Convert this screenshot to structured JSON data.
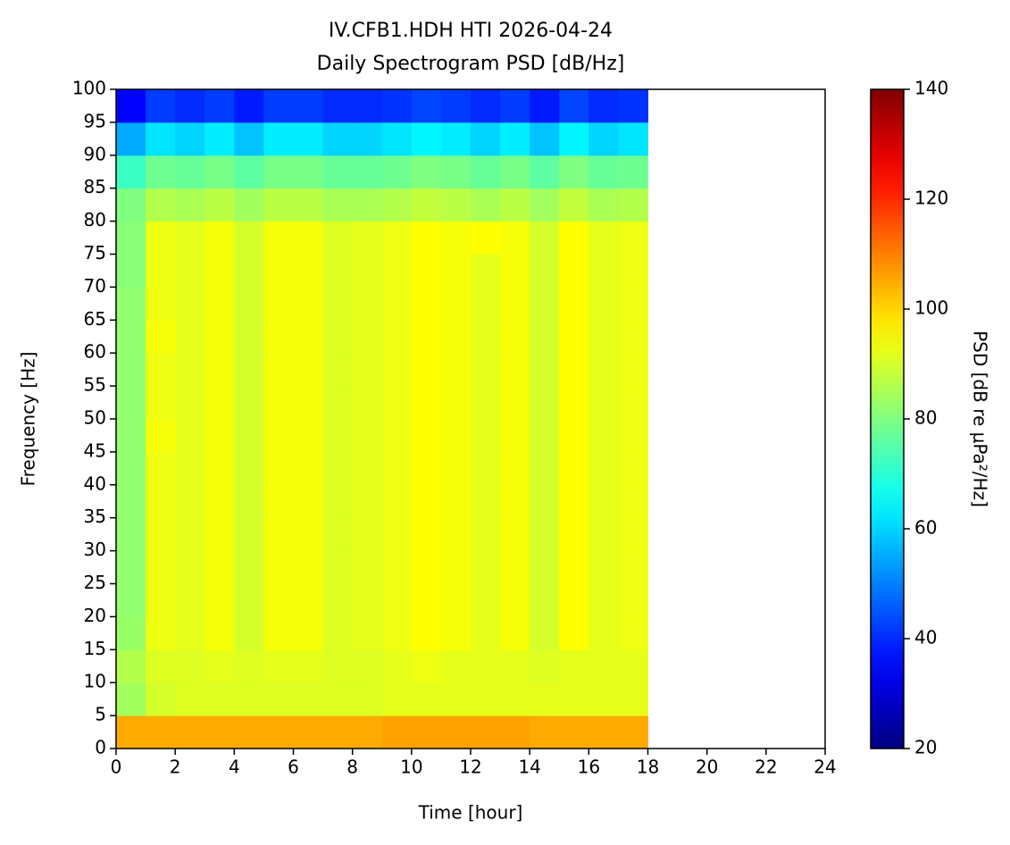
{
  "chart_data": {
    "type": "heatmap",
    "title": "IV.CFB1.HDH HTI 2026-04-24",
    "subtitle": "Daily Spectrogram PSD [dB/Hz]",
    "xlabel": "Time [hour]",
    "ylabel": "Frequency [Hz]",
    "colorbar_label": "PSD [dB re μPa²/Hz]",
    "colormap": "jet",
    "xbins": [
      0,
      1,
      2,
      3,
      4,
      5,
      6,
      7,
      8,
      9,
      10,
      11,
      12,
      13,
      14,
      15,
      16,
      17,
      18
    ],
    "ybins": [
      0,
      5,
      10,
      15,
      20,
      25,
      30,
      35,
      40,
      45,
      50,
      55,
      60,
      65,
      70,
      75,
      80,
      85,
      90,
      95,
      100
    ],
    "values": [
      [
        105,
        105,
        105,
        105,
        105,
        105,
        105,
        105,
        105,
        106,
        106,
        106,
        106,
        106,
        105,
        105,
        105,
        105
      ],
      [
        84,
        90,
        91,
        91,
        91,
        91,
        91,
        91,
        91,
        92,
        92,
        92,
        92,
        92,
        92,
        92,
        92,
        92
      ],
      [
        86,
        91,
        91,
        92,
        91,
        92,
        92,
        91,
        91,
        92,
        93,
        92,
        92,
        92,
        91,
        92,
        92,
        92
      ],
      [
        83,
        93,
        92,
        94,
        90,
        94,
        94,
        91,
        92,
        93,
        95,
        94,
        92,
        94,
        90,
        95,
        92,
        93
      ],
      [
        82,
        93,
        92,
        94,
        90,
        94,
        94,
        91,
        92,
        93,
        95,
        94,
        92,
        94,
        90,
        95,
        92,
        93
      ],
      [
        82,
        93,
        92,
        94,
        90,
        94,
        94,
        91,
        92,
        93,
        95,
        94,
        92,
        94,
        90,
        95,
        92,
        93
      ],
      [
        82,
        93,
        92,
        94,
        90,
        94,
        94,
        91,
        92,
        93,
        95,
        94,
        92,
        94,
        90,
        95,
        92,
        93
      ],
      [
        82,
        93,
        92,
        94,
        90,
        94,
        94,
        91,
        92,
        93,
        95,
        94,
        92,
        94,
        90,
        95,
        92,
        93
      ],
      [
        82,
        93,
        92,
        94,
        90,
        94,
        94,
        91,
        92,
        93,
        95,
        94,
        92,
        94,
        90,
        95,
        92,
        93
      ],
      [
        82,
        94,
        92,
        94,
        90,
        94,
        94,
        91,
        92,
        93,
        95,
        94,
        92,
        94,
        90,
        95,
        92,
        93
      ],
      [
        82,
        93,
        92,
        94,
        90,
        94,
        94,
        91,
        92,
        93,
        95,
        94,
        92,
        94,
        90,
        95,
        92,
        93
      ],
      [
        82,
        93,
        92,
        94,
        90,
        94,
        94,
        91,
        92,
        93,
        95,
        94,
        92,
        94,
        90,
        95,
        92,
        93
      ],
      [
        82,
        94,
        92,
        94,
        90,
        94,
        94,
        91,
        92,
        93,
        95,
        94,
        92,
        94,
        90,
        95,
        92,
        93
      ],
      [
        82,
        93,
        92,
        94,
        90,
        94,
        94,
        91,
        92,
        93,
        95,
        94,
        92,
        94,
        90,
        95,
        92,
        93
      ],
      [
        81,
        93,
        92,
        94,
        90,
        94,
        94,
        91,
        92,
        93,
        95,
        94,
        92,
        94,
        90,
        95,
        92,
        93
      ],
      [
        81,
        93,
        92,
        94,
        90,
        94,
        94,
        91,
        92,
        93,
        95,
        94,
        95,
        94,
        90,
        95,
        92,
        93
      ],
      [
        80,
        86,
        85,
        87,
        84,
        87,
        87,
        85,
        85,
        86,
        88,
        87,
        85,
        87,
        84,
        88,
        85,
        86
      ],
      [
        72,
        78,
        77,
        79,
        76,
        79,
        79,
        77,
        77,
        78,
        80,
        79,
        77,
        79,
        76,
        80,
        77,
        78
      ],
      [
        55,
        62,
        60,
        63,
        58,
        63,
        63,
        60,
        60,
        62,
        64,
        63,
        60,
        63,
        58,
        64,
        60,
        62
      ],
      [
        35,
        42,
        40,
        42,
        38,
        42,
        42,
        40,
        40,
        41,
        43,
        42,
        40,
        42,
        38,
        43,
        40,
        41
      ]
    ],
    "xlim": [
      0,
      24
    ],
    "xticks": [
      0,
      2,
      4,
      6,
      8,
      10,
      12,
      14,
      16,
      18,
      20,
      22,
      24
    ],
    "ylim": [
      0,
      100
    ],
    "yticks": [
      0,
      5,
      10,
      15,
      20,
      25,
      30,
      35,
      40,
      45,
      50,
      55,
      60,
      65,
      70,
      75,
      80,
      85,
      90,
      95,
      100
    ],
    "clim": [
      20,
      140
    ],
    "cticks": [
      20,
      40,
      60,
      80,
      100,
      120,
      140
    ]
  }
}
